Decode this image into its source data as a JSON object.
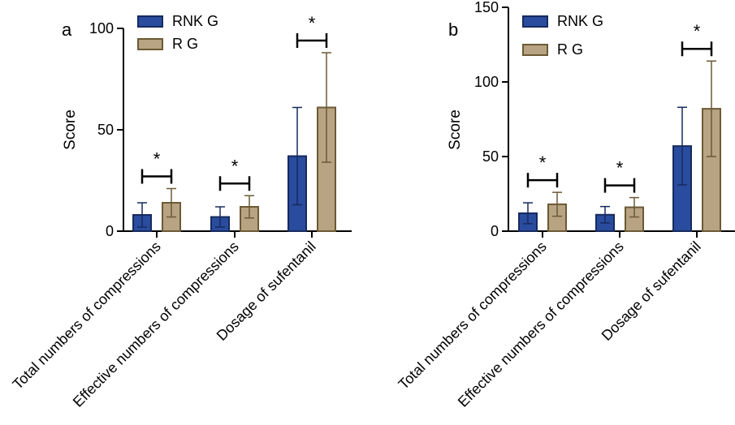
{
  "legend": [
    {
      "name": "RNK G",
      "color": "#2a4c9e",
      "edge": "#162a5e"
    },
    {
      "name": "R G",
      "color": "#b8a383",
      "edge": "#6b5a34"
    }
  ],
  "chart_data": [
    {
      "type": "bar",
      "panel": "a",
      "ylabel": "Score",
      "xlabel": "",
      "ylim": [
        0,
        100
      ],
      "yticks": [
        "0",
        "50",
        "100"
      ],
      "categories": [
        "Total numbers of compressions",
        "Effective numbers of compressions",
        "Dosage of sufentanil"
      ],
      "series": [
        {
          "name": "RNK G",
          "values": [
            8,
            7,
            37
          ],
          "err": [
            6,
            5,
            24
          ]
        },
        {
          "name": "R G",
          "values": [
            14,
            12,
            61
          ],
          "err": [
            7,
            5.5,
            27
          ]
        }
      ],
      "significance": [
        "*",
        "*",
        "*"
      ]
    },
    {
      "type": "bar",
      "panel": "b",
      "ylabel": "Score",
      "xlabel": "",
      "ylim": [
        0,
        150
      ],
      "yticks": [
        "0",
        "50",
        "100",
        "150"
      ],
      "categories": [
        "Total numbers of compressions",
        "Effective numbers of compressions",
        "Dosage of sufentanil"
      ],
      "series": [
        {
          "name": "RNK G",
          "values": [
            12,
            11,
            57
          ],
          "err": [
            7,
            5.5,
            26
          ]
        },
        {
          "name": "R G",
          "values": [
            18,
            16,
            82
          ],
          "err": [
            8,
            6.5,
            32
          ]
        }
      ],
      "significance": [
        "*",
        "*",
        "*"
      ]
    }
  ]
}
